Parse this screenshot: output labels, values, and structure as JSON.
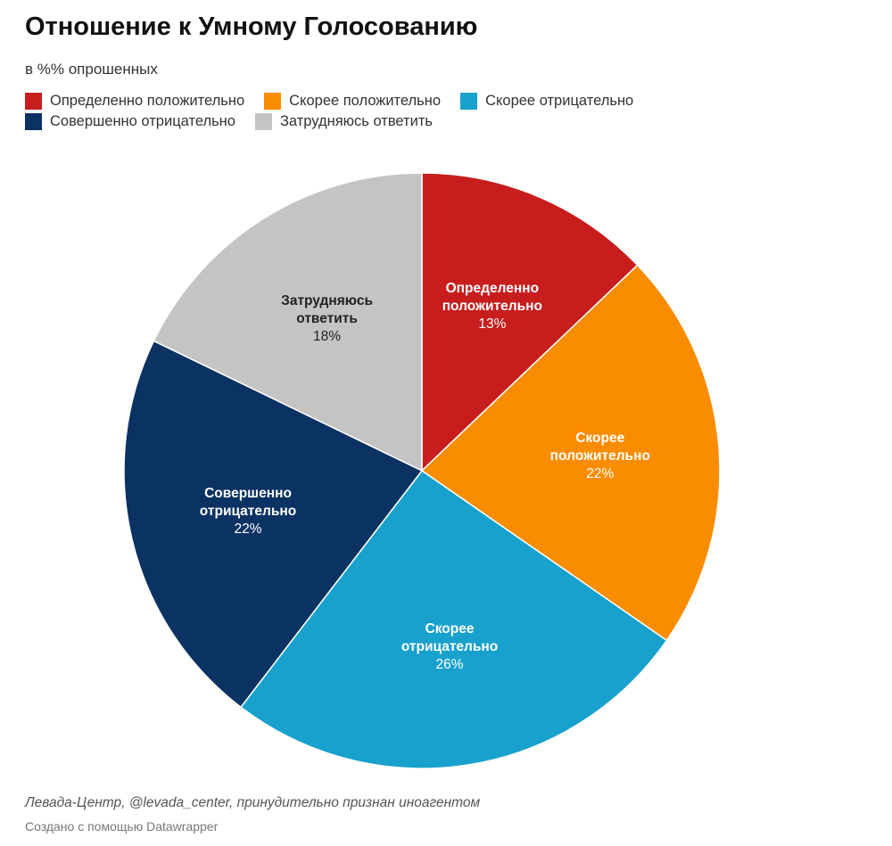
{
  "chart_data": {
    "type": "pie",
    "title": "Отношение к Умному Голосованию",
    "subtitle": "в %% опрошенных",
    "categories": [
      "Определенно положительно",
      "Скорее положительно",
      "Скорее отрицательно",
      "Совершенно отрицательно",
      "Затрудняюсь ответить"
    ],
    "values": [
      13,
      22,
      26,
      22,
      18
    ],
    "value_labels": [
      "13%",
      "22%",
      "26%",
      "22%",
      "18%"
    ],
    "colors": [
      "#c71e1d",
      "#fa8c00",
      "#18a1cd",
      "#0a3262",
      "#c4c4c4"
    ],
    "label_colors": [
      "#ffffff",
      "#ffffff",
      "#ffffff",
      "#ffffff",
      "#222222"
    ],
    "source": "Левада-Центр, @levada_center, принудительно признан иноагентом",
    "credit": "Создано с помощью Datawrapper"
  }
}
